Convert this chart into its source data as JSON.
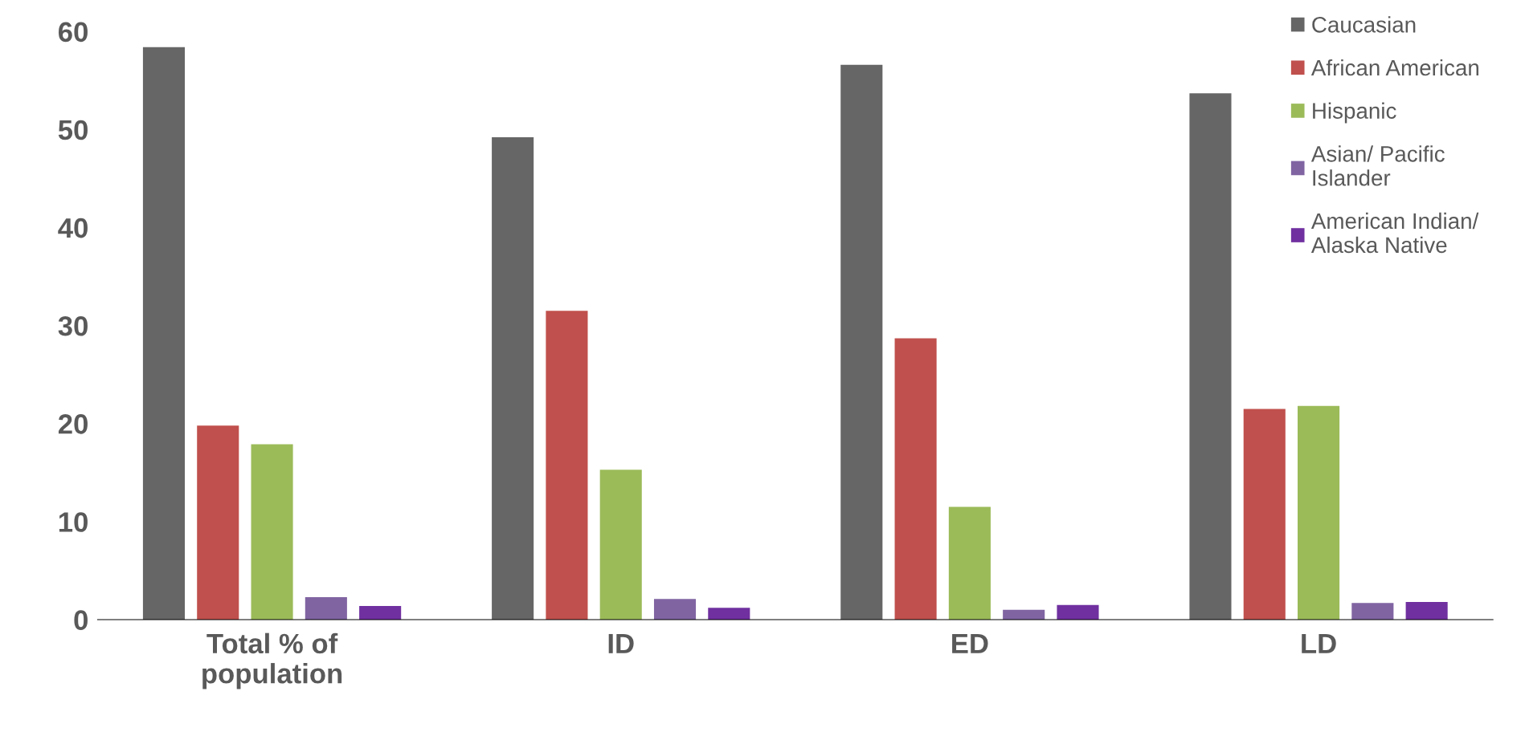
{
  "chart_data": {
    "type": "bar",
    "categories": [
      "Total % of\npopulation",
      "ID",
      "ED",
      "LD"
    ],
    "series": [
      {
        "name": "Caucasian",
        "color": "#666666",
        "values": [
          58.4,
          49.2,
          56.6,
          53.7
        ]
      },
      {
        "name": "African American",
        "color": "#c0504d",
        "values": [
          19.8,
          31.5,
          28.7,
          21.5
        ]
      },
      {
        "name": "Hispanic",
        "color": "#9bbb59",
        "values": [
          17.9,
          15.3,
          11.5,
          21.8
        ]
      },
      {
        "name": "Asian/ Pacific\nIslander",
        "color": "#8064a2",
        "values": [
          2.3,
          2.1,
          1.0,
          1.7
        ]
      },
      {
        "name": "American Indian/\nAlaska Native",
        "color": "#7030a0",
        "values": [
          1.4,
          1.2,
          1.5,
          1.8
        ]
      }
    ],
    "ylim": [
      0,
      60
    ],
    "yticks": [
      0,
      10,
      20,
      30,
      40,
      50,
      60
    ],
    "grid": false,
    "legend": "top right"
  }
}
